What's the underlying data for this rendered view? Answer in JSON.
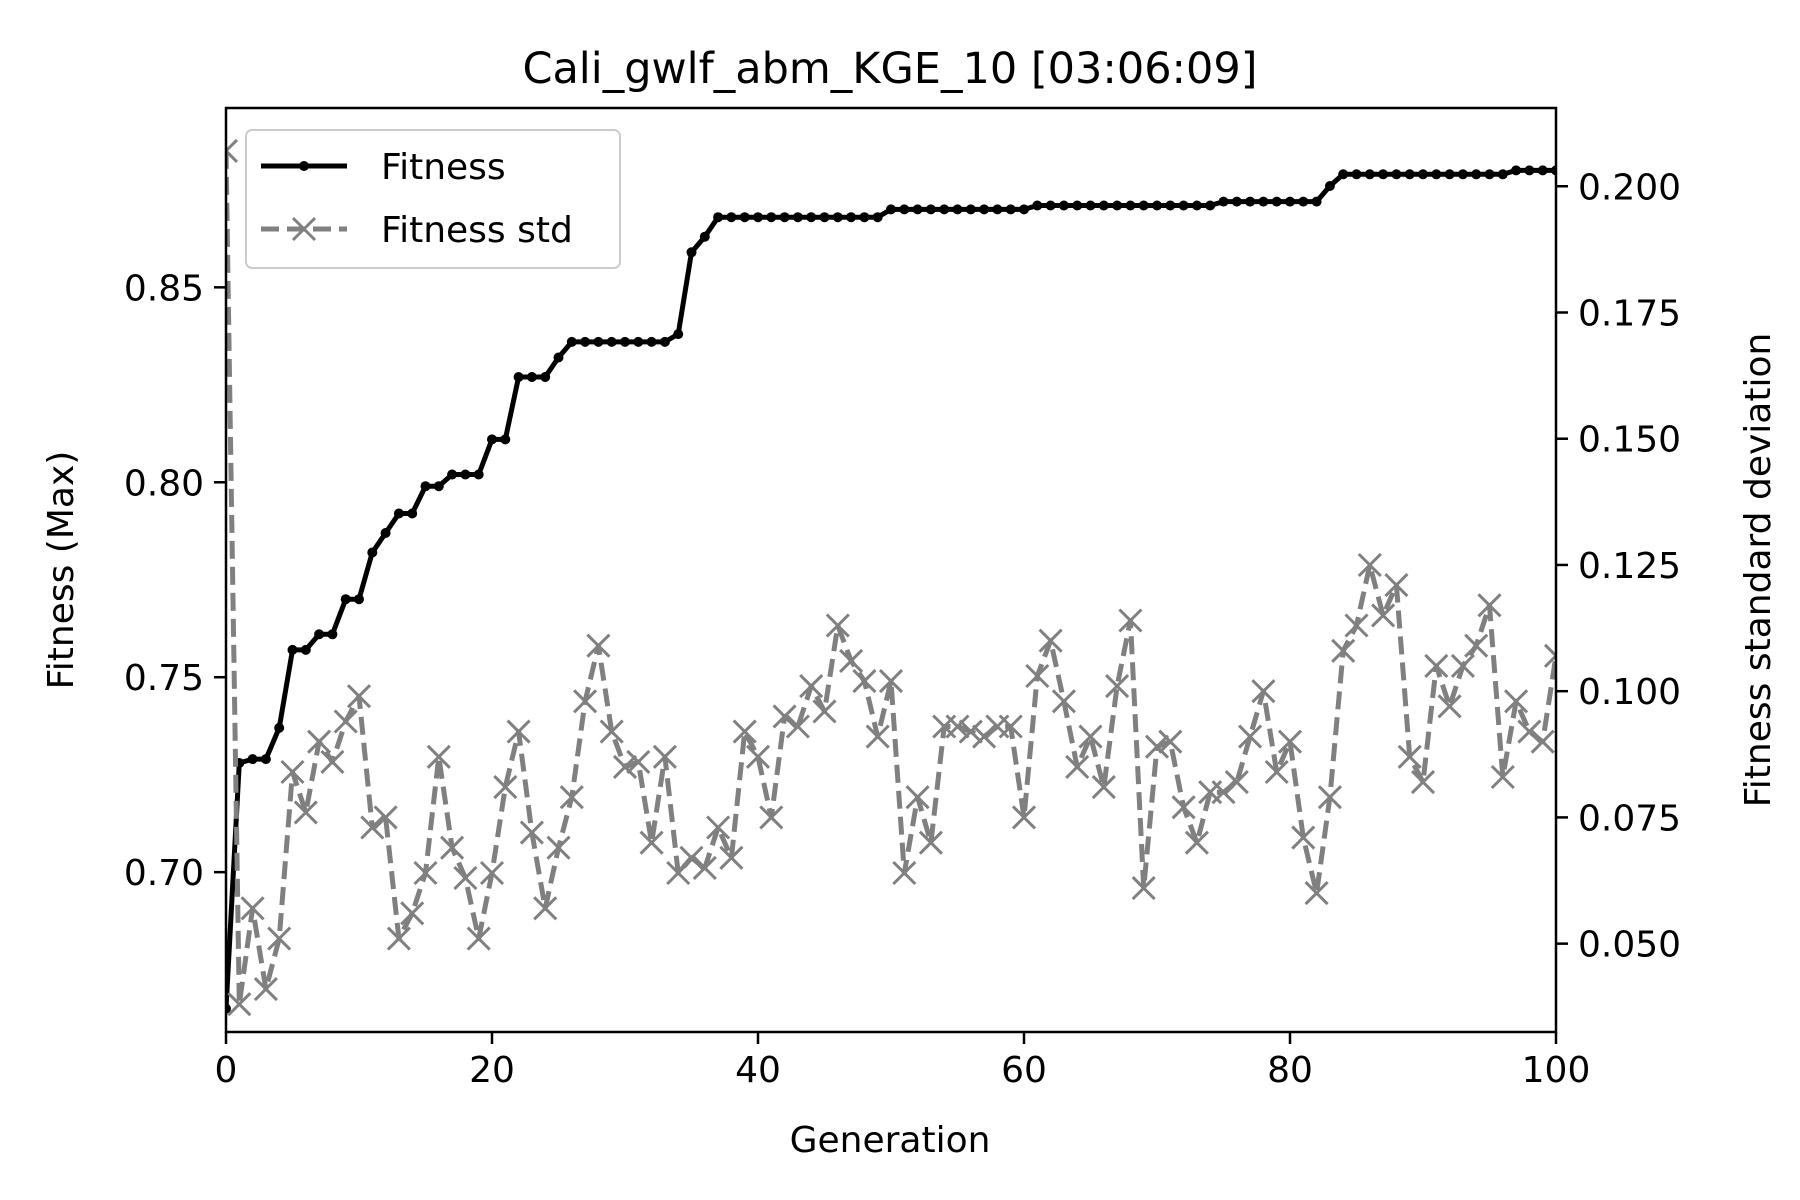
{
  "chart_data": {
    "type": "line",
    "title": "Cali_gwlf_abm_KGE_10  [03:06:09]",
    "xlabel": "Generation",
    "ylabel_left": "Fitness (Max)",
    "ylabel_right": "Fitness standard deviation",
    "xlim": [
      0,
      100
    ],
    "ylim_left": [
      0.659,
      0.896
    ],
    "ylim_right": [
      0.0325,
      0.2155
    ],
    "xticks": [
      0,
      20,
      40,
      60,
      80,
      100
    ],
    "xtick_labels": [
      "0",
      "20",
      "40",
      "60",
      "80",
      "100"
    ],
    "yticks_left": [
      0.7,
      0.75,
      0.8,
      0.85
    ],
    "ytick_labels_left": [
      "0.70",
      "0.75",
      "0.80",
      "0.85"
    ],
    "yticks_right": [
      0.05,
      0.075,
      0.1,
      0.125,
      0.15,
      0.175,
      0.2
    ],
    "ytick_labels_right": [
      "0.050",
      "0.075",
      "0.100",
      "0.125",
      "0.150",
      "0.175",
      "0.200"
    ],
    "grid": false,
    "legend_position": "top-left",
    "series": [
      {
        "name": "Fitness",
        "axis": "left",
        "color": "#000000",
        "style": "solid",
        "marker": "dot",
        "x": [
          0,
          1,
          2,
          3,
          4,
          5,
          6,
          7,
          8,
          9,
          10,
          11,
          12,
          13,
          14,
          15,
          16,
          17,
          18,
          19,
          20,
          21,
          22,
          23,
          24,
          25,
          26,
          27,
          28,
          29,
          30,
          31,
          32,
          33,
          34,
          35,
          36,
          37,
          38,
          39,
          40,
          41,
          42,
          43,
          44,
          45,
          46,
          47,
          48,
          49,
          50,
          51,
          52,
          53,
          54,
          55,
          56,
          57,
          58,
          59,
          60,
          61,
          62,
          63,
          64,
          65,
          66,
          67,
          68,
          69,
          70,
          71,
          72,
          73,
          74,
          75,
          76,
          77,
          78,
          79,
          80,
          81,
          82,
          83,
          84,
          85,
          86,
          87,
          88,
          89,
          90,
          91,
          92,
          93,
          94,
          95,
          96,
          97,
          98,
          99,
          100
        ],
        "values": [
          0.665,
          0.728,
          0.729,
          0.729,
          0.737,
          0.757,
          0.757,
          0.761,
          0.761,
          0.77,
          0.77,
          0.782,
          0.787,
          0.792,
          0.792,
          0.799,
          0.799,
          0.802,
          0.802,
          0.802,
          0.811,
          0.811,
          0.827,
          0.827,
          0.827,
          0.832,
          0.836,
          0.836,
          0.836,
          0.836,
          0.836,
          0.836,
          0.836,
          0.836,
          0.838,
          0.859,
          0.863,
          0.868,
          0.868,
          0.868,
          0.868,
          0.868,
          0.868,
          0.868,
          0.868,
          0.868,
          0.868,
          0.868,
          0.868,
          0.868,
          0.87,
          0.87,
          0.87,
          0.87,
          0.87,
          0.87,
          0.87,
          0.87,
          0.87,
          0.87,
          0.87,
          0.871,
          0.871,
          0.871,
          0.871,
          0.871,
          0.871,
          0.871,
          0.871,
          0.871,
          0.871,
          0.871,
          0.871,
          0.871,
          0.871,
          0.872,
          0.872,
          0.872,
          0.872,
          0.872,
          0.872,
          0.872,
          0.872,
          0.876,
          0.879,
          0.879,
          0.879,
          0.879,
          0.879,
          0.879,
          0.879,
          0.879,
          0.879,
          0.879,
          0.879,
          0.879,
          0.879,
          0.88,
          0.88,
          0.88,
          0.88
        ]
      },
      {
        "name": "Fitness std",
        "axis": "right",
        "color": "#808080",
        "style": "dashed",
        "marker": "x",
        "x": [
          0,
          1,
          2,
          3,
          4,
          5,
          6,
          7,
          8,
          9,
          10,
          11,
          12,
          13,
          14,
          15,
          16,
          17,
          18,
          19,
          20,
          21,
          22,
          23,
          24,
          25,
          26,
          27,
          28,
          29,
          30,
          31,
          32,
          33,
          34,
          35,
          36,
          37,
          38,
          39,
          40,
          41,
          42,
          43,
          44,
          45,
          46,
          47,
          48,
          49,
          50,
          51,
          52,
          53,
          54,
          55,
          56,
          57,
          58,
          59,
          60,
          61,
          62,
          63,
          64,
          65,
          66,
          67,
          68,
          69,
          70,
          71,
          72,
          73,
          74,
          75,
          76,
          77,
          78,
          79,
          80,
          81,
          82,
          83,
          84,
          85,
          86,
          87,
          88,
          89,
          90,
          91,
          92,
          93,
          94,
          95,
          96,
          97,
          98,
          99,
          100
        ],
        "values": [
          0.207,
          0.038,
          0.057,
          0.041,
          0.051,
          0.084,
          0.076,
          0.09,
          0.086,
          0.094,
          0.099,
          0.073,
          0.075,
          0.051,
          0.056,
          0.064,
          0.087,
          0.069,
          0.063,
          0.051,
          0.064,
          0.081,
          0.092,
          0.072,
          0.057,
          0.069,
          0.079,
          0.098,
          0.109,
          0.092,
          0.085,
          0.086,
          0.07,
          0.087,
          0.064,
          0.067,
          0.065,
          0.073,
          0.067,
          0.092,
          0.087,
          0.075,
          0.095,
          0.093,
          0.101,
          0.096,
          0.113,
          0.106,
          0.102,
          0.091,
          0.102,
          0.064,
          0.079,
          0.07,
          0.093,
          0.093,
          0.092,
          0.091,
          0.093,
          0.093,
          0.075,
          0.103,
          0.11,
          0.098,
          0.085,
          0.091,
          0.081,
          0.101,
          0.114,
          0.061,
          0.089,
          0.09,
          0.077,
          0.07,
          0.08,
          0.08,
          0.082,
          0.091,
          0.1,
          0.084,
          0.09,
          0.071,
          0.06,
          0.079,
          0.108,
          0.113,
          0.125,
          0.115,
          0.121,
          0.087,
          0.082,
          0.105,
          0.097,
          0.105,
          0.109,
          0.117,
          0.083,
          0.098,
          0.092,
          0.09,
          0.107
        ]
      }
    ]
  }
}
